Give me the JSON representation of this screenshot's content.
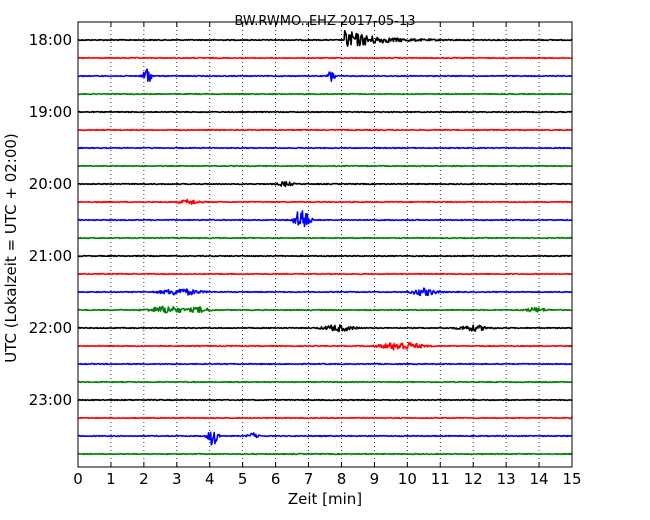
{
  "chart_data": {
    "type": "line",
    "title": "BW.RWMO..EHZ 2017-05-13",
    "xlabel": "Zeit  [min]",
    "ylabel": "UTC (Lokalzeit = UTC + 02:00)",
    "xlim": [
      0,
      15
    ],
    "x_ticks": [
      0,
      1,
      2,
      3,
      4,
      5,
      6,
      7,
      8,
      9,
      10,
      11,
      12,
      13,
      14,
      15
    ],
    "grid": "vertical dotted",
    "trace_interval_min": 15,
    "y_tick_labels": [
      "18:00",
      "19:00",
      "20:00",
      "21:00",
      "22:00",
      "23:00"
    ],
    "color_cycle": [
      "#000000",
      "#ff0000",
      "#0000ff",
      "#008000"
    ],
    "traces": [
      {
        "start": "18:00",
        "events": [
          {
            "t": 8.2,
            "amp": 1.0,
            "dur": 2.5
          }
        ]
      },
      {
        "start": "18:15",
        "events": []
      },
      {
        "start": "18:30",
        "events": [
          {
            "t": 2.1,
            "amp": 1.1,
            "dur": 0.15
          },
          {
            "t": 7.7,
            "amp": 0.7,
            "dur": 0.15
          }
        ]
      },
      {
        "start": "18:45",
        "events": []
      },
      {
        "start": "19:00",
        "events": []
      },
      {
        "start": "19:15",
        "events": []
      },
      {
        "start": "19:30",
        "events": []
      },
      {
        "start": "19:45",
        "events": []
      },
      {
        "start": "20:00",
        "events": [
          {
            "t": 6.3,
            "amp": 0.25,
            "dur": 0.3
          }
        ]
      },
      {
        "start": "20:15",
        "events": [
          {
            "t": 3.4,
            "amp": 0.25,
            "dur": 0.4
          }
        ]
      },
      {
        "start": "20:30",
        "events": [
          {
            "t": 6.8,
            "amp": 1.3,
            "dur": 0.3
          }
        ]
      },
      {
        "start": "20:45",
        "events": []
      },
      {
        "start": "21:00",
        "events": []
      },
      {
        "start": "21:15",
        "events": []
      },
      {
        "start": "21:30",
        "events": [
          {
            "t": 3.1,
            "amp": 0.35,
            "dur": 0.8
          },
          {
            "t": 10.5,
            "amp": 0.4,
            "dur": 0.5
          }
        ]
      },
      {
        "start": "21:45",
        "events": [
          {
            "t": 2.7,
            "amp": 0.4,
            "dur": 0.7
          },
          {
            "t": 3.7,
            "amp": 0.3,
            "dur": 0.4
          },
          {
            "t": 13.9,
            "amp": 0.25,
            "dur": 0.4
          }
        ]
      },
      {
        "start": "22:00",
        "events": [
          {
            "t": 7.9,
            "amp": 0.35,
            "dur": 0.6
          },
          {
            "t": 12.0,
            "amp": 0.3,
            "dur": 0.6
          }
        ]
      },
      {
        "start": "22:15",
        "events": [
          {
            "t": 9.8,
            "amp": 0.45,
            "dur": 0.8
          }
        ]
      },
      {
        "start": "22:30",
        "events": []
      },
      {
        "start": "22:45",
        "events": []
      },
      {
        "start": "23:00",
        "events": []
      },
      {
        "start": "23:15",
        "events": []
      },
      {
        "start": "23:30",
        "events": [
          {
            "t": 4.1,
            "amp": 1.1,
            "dur": 0.2
          },
          {
            "t": 5.3,
            "amp": 0.3,
            "dur": 0.2
          }
        ]
      },
      {
        "start": "23:45",
        "events": []
      }
    ]
  }
}
